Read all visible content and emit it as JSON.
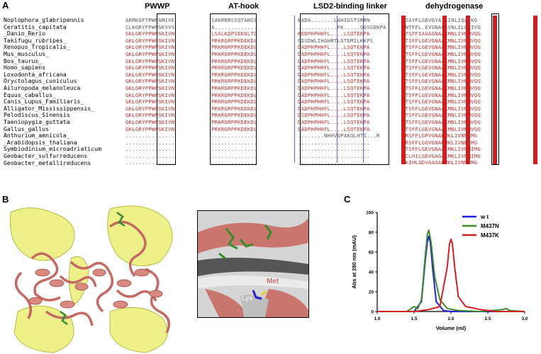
{
  "panels": {
    "a": "A",
    "b": "B",
    "c": "C"
  },
  "domains": {
    "pwwp": "PWWP",
    "athook": "AT-hook",
    "linker": "LSD2-binding linker",
    "dehydrogenase": "dehydrogenase"
  },
  "species": [
    "Noplophora_glabripennis",
    "Ceratitis_capitata",
    "_Danio_Rerio",
    "Takifugu_rubripes_",
    "Xenopus_Tropicalis_",
    "Mus_musculus_",
    "Bos_taurus_",
    "Homo_sapiens",
    "Loxodonta_africana",
    "Oryctolagus_cuniculus",
    "Ailuropoda_melanoleuca",
    "Equus_caballus_",
    "Canis_Lupus_Familiaris_",
    "Alligator_Mississippensis_",
    "Pelodiscus_Sinensis",
    "Taeniopygia_guttata",
    "Gallus_gallus",
    "Anthurium_amnicola_",
    "_Arabidopsis_thaliana",
    "Symbiodinium_microadriaticum",
    "Geobacter_sulfurreducens",
    "Geobacter_metallireducens"
  ],
  "alignment": {
    "pwwp": [
      "AKMKGFTPWPAMIVE",
      "CLKGRYFPWPGKVVS",
      "GKLGRYPPWPGKIVN",
      "GKLGRYPPWPGKIVN",
      "GKLGRYPPWPGKIVN",
      "GKLGRYPPWPGKIVN",
      "GKLGRYPPWPGKIVN",
      "GKLGRYPPWPGKIVN",
      "GKLGRYPPWPGKIVN",
      "GKLGRYPPWPGKIVN",
      "GKLGRYPPWPGKIVN",
      "GKLGRYPPWPGKIVN",
      "GKLGRYPPWPGKIVN",
      "GKLGRYPPWPGKIVN",
      "GKLGRYPPWPGKIVN",
      "GKLGRYPPWPGKIVN",
      "GKLGRYPPWPGKIVN",
      "...............",
      "...............",
      "...............",
      "...............",
      "..............."
    ],
    "athook": [
      "SAKRRRSSQTANSS",
      "A.............",
      "LSALKDPSEKDLTD",
      "PRKRGRPPKDEKDL",
      "PRKRGRPPKDEKDL",
      "PRKRGRPPKDEKDL",
      "PRKRGRPPKDEKDL",
      "PRKRGRPPKDEKDL",
      "PRKRGRPPKDEKDL",
      "PRKRGRPPKDEKDL",
      "PRKRGRPPKDEKDL",
      "PRKRGRPPKDEKDL",
      "PRKRGRPPKDEKDL",
      "PRKRGRPPKDEKDL",
      "PRKRGRPPKDEKDL",
      "PRKRGRPPKDEKDL",
      "PRKRGRPPKDEKDL",
      "..............",
      "..............",
      "..............",
      "..............",
      ".............."
    ],
    "linker": [
      "NADA.......LAHIGSTSRRN",
      "............FK.....GGSSDKPA",
      "KDDPHPHHFL....LSQTEKPA",
      "GDSDWLIHGHRTLGTEMILKKPS",
      "DADPHPHHFL....LSQTEKPA",
      "DADPHPHHFL....LSQTEKPA",
      "DADPHPHHFL....LSQTEKPA",
      "DADPHPHHFL....LSQTEKPA",
      "DADPHPHHFL....LSQTEKPA",
      "DADPHPHHFL....LSQTEKPA",
      "DADPHPHHFL....LSQTEKPA",
      "DADPHPHHFL....LSQTEKPA",
      "DADPHPHHFL....LSQTEKPA",
      "DADPHPHHFL....LSQTEKPA",
      "DSDPHPHHFL....LSQTEKPA",
      "DADPHPHHFL....LSQTEKPA",
      "DADPHPHHFL....LSQTEKPA",
      "........NHHVQPAKQLHTS...R",
      "......................",
      "......................",
      "......................",
      "......................"
    ],
    "dehydrogenase": [
      "KSAYFLGDVGYATKINLIQLIKG",
      "KNTFFL.EVGNACKVNLILQTIVG",
      "KTSFFIAGAGNAAKMNLIVMMVQG",
      "KTSFFLGEVGNAAKMNLIVMMVQG",
      "KTSFFLGEVGNAAKMNLIVMMVQG",
      "KTSFFLGEVGNAAKMNLIVMMVQG",
      "KTSFFLGEVGNAAKMNLIVMMVQG",
      "KTSFFLGEVGNAAKMNLIVMMVQG",
      "KTSFFLGEVGNAAKMNLIVMMVQG",
      "KTSFFLGEVGNAAKMNLIVMMVQG",
      "KTSFFLGEVGNAAKMNLIVMMVQG",
      "KTSFFLGEVGNAAKMNLIVMMVQG",
      "KTSFFLGEVGNAAKMNLIVMMVQG",
      "KTSFFLGEVGNAAKMNLIVMMVQG",
      "KTSFFLGEVGNAAKMNLIVMMVQG",
      "KTSFFLGEVGNAAKMNLIVMMVQG",
      "KTSFFLGEVGNAAKMNLIVMMVQG",
      "KRSFFLGPVGNAKMKLIVNMIMG",
      "KRSFFLGQVGNAKMKLIVNMIMG",
      "KTSFFLGEVGNAAKMKLIVNMIMG",
      "KCLHILGEVGAGAKMKLIVNMIMG",
      "KKIHLGDVGAGAKMKLIVNMIMG"
    ]
  },
  "structure_labels": {
    "met": "Met",
    "lys": "Lys"
  },
  "chart_data": {
    "type": "line",
    "title": "",
    "xlabel": "Volume (ml)",
    "ylabel": "Abs at 280 nm (mAU)",
    "xlim": [
      1.0,
      3.0
    ],
    "ylim": [
      0,
      100
    ],
    "xticks": [
      "1.0",
      "1.5",
      "2.0",
      "2.5",
      "3.0"
    ],
    "yticks": [
      "0",
      "20",
      "40",
      "60",
      "80",
      "100"
    ],
    "legend_position": "top-right",
    "series": [
      {
        "name": "w t",
        "color": "#1e1ee0",
        "x": [
          1.0,
          1.5,
          1.6,
          1.65,
          1.68,
          1.7,
          1.72,
          1.75,
          1.8,
          1.9,
          2.0,
          2.5,
          3.0
        ],
        "y": [
          0,
          0,
          10,
          50,
          70,
          76,
          70,
          45,
          10,
          1,
          0,
          0,
          0
        ]
      },
      {
        "name": "M437N",
        "color": "#3c8c2c",
        "x": [
          1.0,
          1.4,
          1.5,
          1.55,
          1.6,
          1.65,
          1.68,
          1.7,
          1.73,
          1.78,
          1.85,
          1.95,
          2.1,
          2.4,
          2.7,
          2.75,
          2.8,
          3.0
        ],
        "y": [
          0,
          0,
          5,
          3,
          12,
          55,
          78,
          82,
          70,
          35,
          12,
          3,
          1,
          0,
          2,
          3,
          1,
          0
        ]
      },
      {
        "name": "M437K",
        "color": "#d42020",
        "x": [
          1.0,
          1.5,
          1.7,
          1.85,
          1.95,
          1.98,
          2.0,
          2.02,
          2.05,
          2.1,
          2.2,
          2.4,
          2.6,
          3.0
        ],
        "y": [
          0,
          0,
          2,
          5,
          45,
          68,
          73,
          68,
          45,
          15,
          5,
          2,
          0,
          0
        ]
      }
    ]
  }
}
